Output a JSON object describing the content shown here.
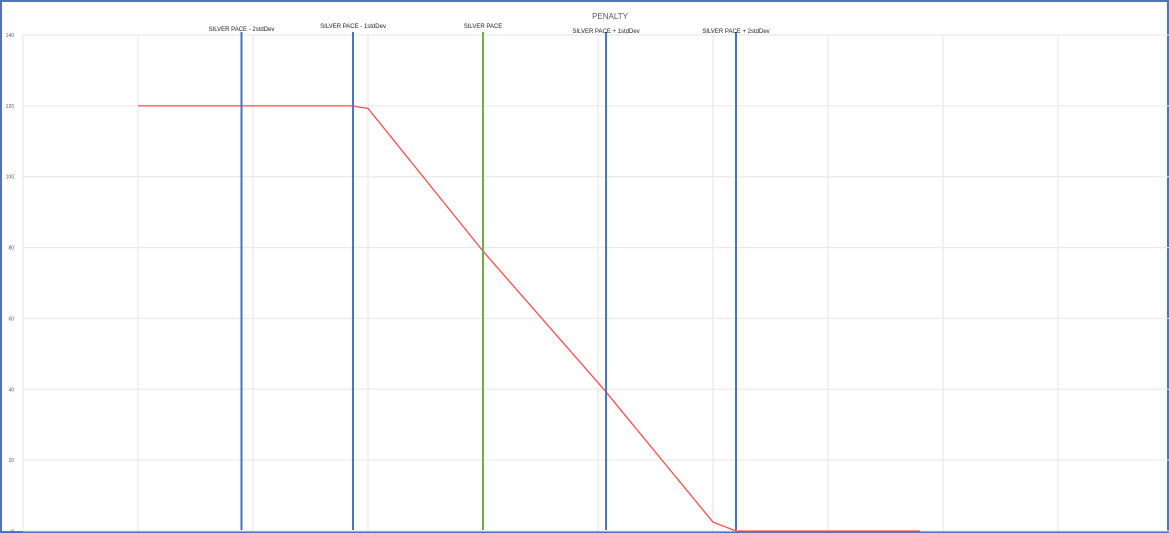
{
  "chart_data": {
    "type": "line",
    "title": "PENALTY",
    "xlabel": "",
    "ylabel": "",
    "ylim": [
      0,
      140
    ],
    "yticks": [
      0,
      20,
      40,
      60,
      80,
      100,
      120,
      140
    ],
    "xlim": [
      0,
      10
    ],
    "grid": true,
    "series": [
      {
        "color": "#ff4b4b",
        "points": [
          [
            1.0,
            120
          ],
          [
            1.9,
            120
          ],
          [
            2.85,
            120
          ],
          [
            3.0,
            119.3
          ],
          [
            4.0,
            79
          ],
          [
            5.05,
            40
          ],
          [
            6.0,
            2.5
          ],
          [
            6.2,
            0
          ],
          [
            7.8,
            0
          ]
        ]
      }
    ],
    "markers": [
      {
        "label": "SILVER PACE - 2stdDev",
        "x": 1.9,
        "color": "#4472c4"
      },
      {
        "label": "SILVER PACE - 1stdDev",
        "x": 2.87,
        "color": "#4472c4"
      },
      {
        "label": "SILVER PACE",
        "x": 4.0,
        "color": "#70ad47"
      },
      {
        "label": "SILVER PACE + 1stdDev",
        "x": 5.07,
        "color": "#4472c4"
      },
      {
        "label": "SILVER PACE + 2stdDev",
        "x": 6.2,
        "color": "#4472c4"
      }
    ]
  }
}
